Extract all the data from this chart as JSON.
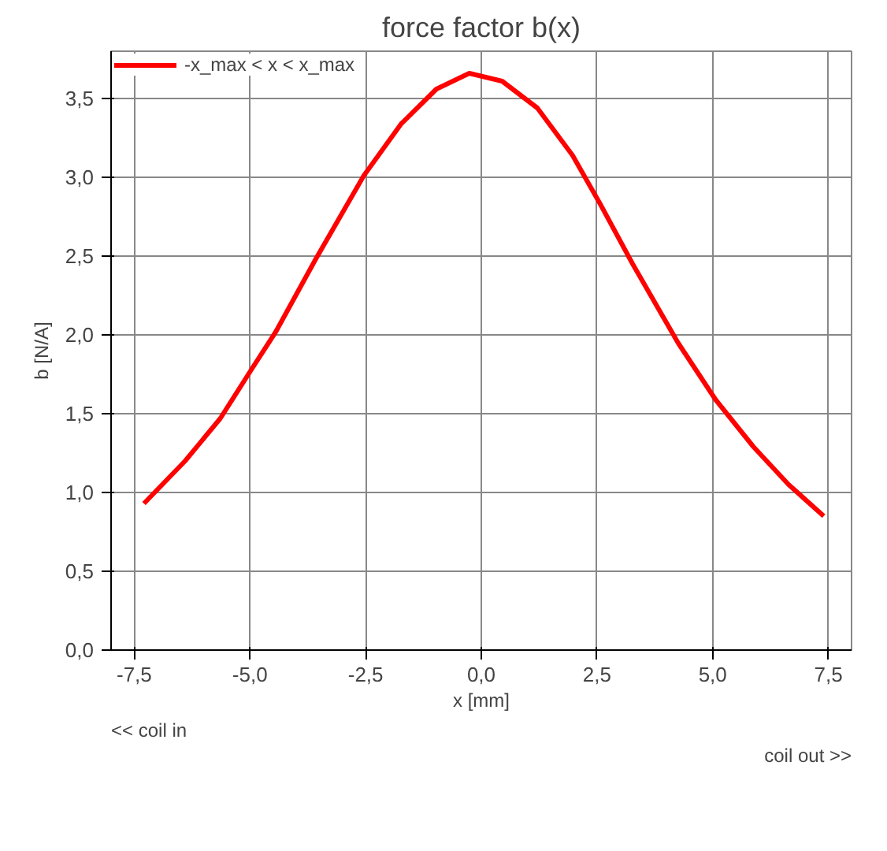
{
  "chart_data": {
    "type": "line",
    "title": "force factor b(x)",
    "xlabel": "x [mm]",
    "ylabel": "b [N/A]",
    "x": [
      -7.29,
      -6.4,
      -5.64,
      -4.99,
      -4.44,
      -3.58,
      -2.54,
      -1.73,
      -0.97,
      -0.26,
      0.45,
      1.21,
      1.97,
      2.57,
      3.27,
      4.25,
      5.06,
      5.88,
      6.64,
      7.4
    ],
    "series": [
      {
        "name": "-x_max < x < x_max",
        "color": "#ff0000",
        "values": [
          0.93,
          1.2,
          1.47,
          1.77,
          2.02,
          2.48,
          3.01,
          3.34,
          3.56,
          3.66,
          3.61,
          3.44,
          3.14,
          2.83,
          2.45,
          1.95,
          1.59,
          1.29,
          1.05,
          0.85
        ]
      }
    ],
    "xlim": [
      -8,
      8
    ],
    "ylim": [
      0,
      3.8
    ],
    "xticks": [
      {
        "value": -7.5,
        "label": "-7,5"
      },
      {
        "value": -5,
        "label": "-5,0"
      },
      {
        "value": -2.5,
        "label": "-2,5"
      },
      {
        "value": 0,
        "label": "0,0"
      },
      {
        "value": 2.5,
        "label": "2,5"
      },
      {
        "value": 5,
        "label": "5,0"
      },
      {
        "value": 7.5,
        "label": "7,5"
      }
    ],
    "yticks": [
      {
        "value": 0,
        "label": "0,0"
      },
      {
        "value": 0.5,
        "label": "0,5"
      },
      {
        "value": 1,
        "label": "1,0"
      },
      {
        "value": 1.5,
        "label": "1,5"
      },
      {
        "value": 2,
        "label": "2,0"
      },
      {
        "value": 2.5,
        "label": "2,5"
      },
      {
        "value": 3,
        "label": "3,0"
      },
      {
        "value": 3.5,
        "label": "3,5"
      }
    ],
    "annotations": [
      "<< coil in",
      "coil out >>"
    ],
    "grid": true,
    "legend": "top left",
    "line_style": "solid",
    "marker": "none"
  }
}
